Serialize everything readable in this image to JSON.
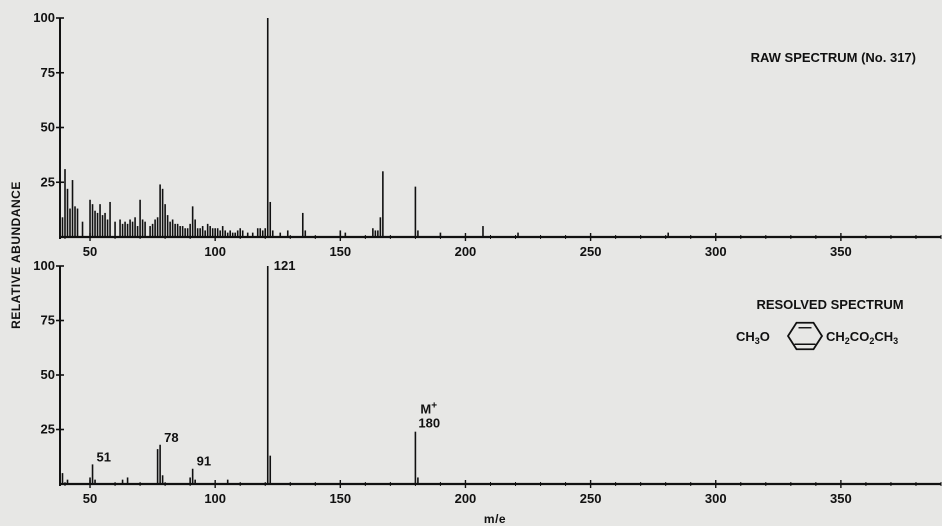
{
  "chart_data": [
    {
      "type": "bar",
      "title": "RAW SPECTRUM  (No. 317)",
      "xlabel": "",
      "ylabel": "RELATIVE ABUNDANCE",
      "xlim": [
        38,
        390
      ],
      "ylim": [
        0,
        100
      ],
      "x_ticks": [
        50,
        100,
        150,
        200,
        250,
        300,
        350
      ],
      "y_ticks": [
        25,
        50,
        75,
        100
      ],
      "x_tick_labels": [
        "50",
        "100",
        "150",
        "200",
        "250",
        "300",
        "350"
      ],
      "y_tick_labels": [
        "25",
        "50",
        "75",
        "100"
      ],
      "x": [
        39,
        40,
        41,
        42,
        43,
        44,
        45,
        47,
        50,
        51,
        52,
        53,
        54,
        55,
        56,
        57,
        58,
        60,
        62,
        63,
        64,
        65,
        66,
        67,
        68,
        69,
        70,
        71,
        72,
        74,
        75,
        76,
        77,
        78,
        79,
        80,
        81,
        82,
        83,
        84,
        85,
        86,
        87,
        88,
        89,
        90,
        91,
        92,
        93,
        94,
        95,
        96,
        97,
        98,
        99,
        100,
        101,
        102,
        103,
        104,
        105,
        106,
        107,
        108,
        109,
        110,
        111,
        113,
        115,
        117,
        118,
        119,
        120,
        121,
        122,
        123,
        126,
        129,
        135,
        136,
        150,
        152,
        163,
        164,
        165,
        166,
        167,
        180,
        181,
        190,
        207,
        221,
        281
      ],
      "y": [
        9,
        31,
        22,
        13,
        26,
        14,
        13,
        7,
        17,
        15,
        12,
        11,
        15,
        10,
        11,
        8,
        16,
        7,
        8,
        6,
        7,
        6,
        8,
        7,
        9,
        5,
        17,
        8,
        7,
        5,
        6,
        8,
        9,
        24,
        22,
        15,
        10,
        7,
        8,
        6,
        6,
        5,
        5,
        4,
        4,
        6,
        14,
        8,
        4,
        4,
        5,
        3,
        6,
        5,
        4,
        4,
        4,
        3,
        5,
        3,
        2,
        3,
        2,
        2,
        3,
        4,
        3,
        2,
        2,
        4,
        4,
        3,
        4,
        100,
        16,
        3,
        2,
        3,
        11,
        3,
        3,
        2,
        4,
        3,
        3,
        9,
        30,
        23,
        3,
        2,
        5,
        2,
        2
      ]
    },
    {
      "type": "bar",
      "title": "RESOLVED SPECTRUM",
      "xlabel": "m/e",
      "ylabel": "RELATIVE ABUNDANCE",
      "xlim": [
        38,
        390
      ],
      "ylim": [
        0,
        100
      ],
      "x_ticks": [
        50,
        100,
        150,
        200,
        250,
        300,
        350
      ],
      "y_ticks": [
        25,
        50,
        75,
        100
      ],
      "x_tick_labels": [
        "50",
        "100",
        "150",
        "200",
        "250",
        "300",
        "350"
      ],
      "y_tick_labels": [
        "25",
        "50",
        "75",
        "100"
      ],
      "x": [
        39,
        41,
        50,
        51,
        52,
        63,
        65,
        77,
        78,
        79,
        90,
        91,
        92,
        105,
        121,
        122,
        180,
        181
      ],
      "y": [
        5,
        2,
        3,
        9,
        2,
        2,
        3,
        16,
        18,
        4,
        3,
        7,
        2,
        2,
        100,
        13,
        24,
        3
      ],
      "peak_labels": [
        {
          "x": 51,
          "text": "51"
        },
        {
          "x": 78,
          "text": "78"
        },
        {
          "x": 91,
          "text": "91"
        },
        {
          "x": 121,
          "text": "121"
        },
        {
          "x": 180,
          "text": "180",
          "prefix": "M+"
        }
      ],
      "structure": {
        "left": "CH3O",
        "right": "CH2CO2CH3",
        "ring": "benzene"
      }
    }
  ],
  "colors": {
    "background": "#e7e7e5",
    "ink": "#111111"
  }
}
